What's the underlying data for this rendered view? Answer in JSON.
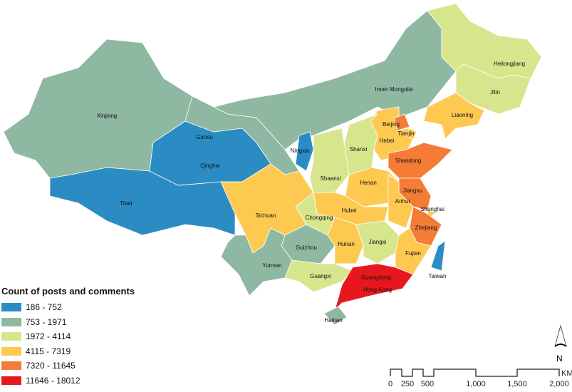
{
  "legend": {
    "title": "Count of posts and comments",
    "classes": [
      {
        "label": "186 - 752",
        "color": "#2b8cc4"
      },
      {
        "label": "753 - 1971",
        "color": "#8fb8a2"
      },
      {
        "label": "1972 - 4114",
        "color": "#d7e68c"
      },
      {
        "label": "4115 - 7319",
        "color": "#fdc950"
      },
      {
        "label": "7320 - 11645",
        "color": "#f47c36"
      },
      {
        "label": "11646 - 18012",
        "color": "#e6181d"
      }
    ]
  },
  "provinces": [
    {
      "name": "Xinjiang",
      "class": 1
    },
    {
      "name": "Tibet",
      "class": 0
    },
    {
      "name": "Qinghai",
      "class": 0
    },
    {
      "name": "Gansu",
      "class": 1
    },
    {
      "name": "Inner Mongolia",
      "class": 1
    },
    {
      "name": "Heilongjiang",
      "class": 2
    },
    {
      "name": "Jilin",
      "class": 2
    },
    {
      "name": "Liaoning",
      "class": 3
    },
    {
      "name": "Hebei",
      "class": 3
    },
    {
      "name": "Beijing",
      "class": 4
    },
    {
      "name": "Tianjin",
      "class": 3
    },
    {
      "name": "Shanxi",
      "class": 2
    },
    {
      "name": "Shandong",
      "class": 4
    },
    {
      "name": "Ningxia",
      "class": 0
    },
    {
      "name": "Shaanxi",
      "class": 2
    },
    {
      "name": "Henan",
      "class": 3
    },
    {
      "name": "Jiangsu",
      "class": 4
    },
    {
      "name": "Anhui",
      "class": 3
    },
    {
      "name": "Shanghai",
      "class": 3
    },
    {
      "name": "Zhejiang",
      "class": 4
    },
    {
      "name": "Hubei",
      "class": 3
    },
    {
      "name": "Chongqing",
      "class": 2
    },
    {
      "name": "Sichuan",
      "class": 3
    },
    {
      "name": "Guizhou",
      "class": 1
    },
    {
      "name": "Yunnan",
      "class": 1
    },
    {
      "name": "Hunan",
      "class": 3
    },
    {
      "name": "Jiangxi",
      "class": 2
    },
    {
      "name": "Fujian",
      "class": 3
    },
    {
      "name": "Guangxi",
      "class": 2
    },
    {
      "name": "Guangdong",
      "class": 5
    },
    {
      "name": "Hainan",
      "class": 1
    },
    {
      "name": "Taiwan",
      "class": 0
    }
  ],
  "extra_labels": {
    "hong_kong": "Hong Kong"
  },
  "scale_bar": {
    "ticks": [
      "0",
      "250",
      "500",
      "1,000",
      "1,500",
      "2,000"
    ],
    "unit": "KM"
  },
  "north_arrow": {
    "label": "N"
  }
}
